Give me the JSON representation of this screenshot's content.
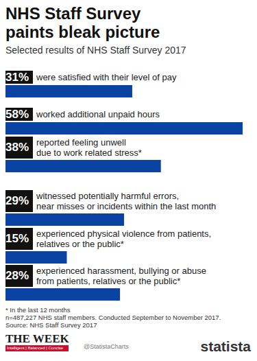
{
  "chart_data": {
    "type": "bar",
    "orientation": "horizontal",
    "title": "NHS Staff Survey\npaints bleak picture",
    "subtitle": "Selected results of NHS Staff Survey 2017",
    "categories": [
      "were satisfied with their level of pay",
      "worked additional unpaid hours",
      "reported feeling unwell\ndue to work related stress*",
      "witnessed potentially harmful errors,\nnear misses or incidents within the last month",
      "experienced physical violence from patients,\nrelatives or the public*",
      "experienced harassment, bullying or abuse\nfrom patients, relatives or the public*"
    ],
    "values": [
      31,
      58,
      38,
      29,
      15,
      28
    ],
    "value_labels": [
      "31%",
      "58%",
      "38%",
      "29%",
      "15%",
      "28%"
    ],
    "data_labels": true,
    "color": "#0b43a3",
    "xlim": [
      0,
      60
    ],
    "tick_labels": false,
    "grid": false,
    "notes": [
      "* In the last 12 months",
      "n=487,227 NHS staff members. Conducted September to November 2017.",
      "Source: NHS Staff Survey 2017"
    ],
    "branding": [
      "THE WEEK",
      "Intelligent | Balanced | Concise",
      "@StatistaCharts",
      "statista"
    ]
  }
}
